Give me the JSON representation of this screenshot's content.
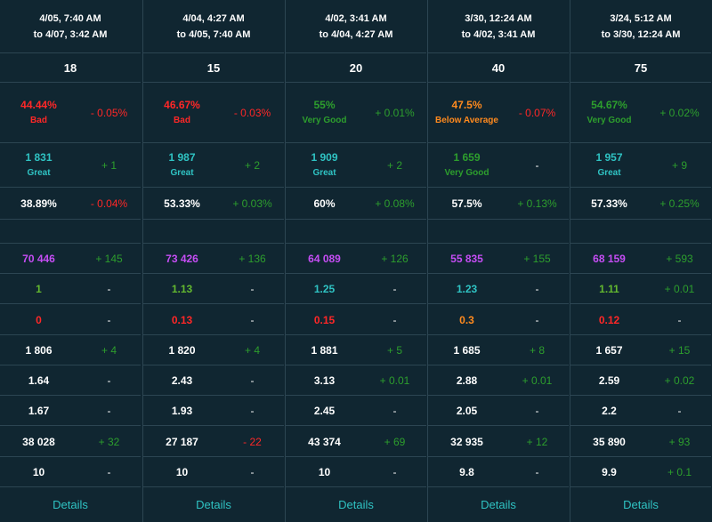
{
  "colors": {
    "background": "#102631",
    "border": "#2c4552",
    "green": "#2d9e2d",
    "light_green": "#63b82f",
    "cyan": "#2fc3c3",
    "red": "#ff2727",
    "orange": "#ff8a1e",
    "purple": "#c54df4"
  },
  "columns": [
    {
      "period_line1": "4/05, 7:40 AM",
      "period_line2": "to 4/07, 3:42 AM",
      "count": "18",
      "rating_value": "44.44%",
      "rating_label": "Bad",
      "rating_color": "red",
      "rating_delta": "- 0.05%",
      "rating_delta_color": "red",
      "ratio_value": "1 831",
      "ratio_label": "Great",
      "ratio_color": "cyan",
      "ratio_delta": "+ 1",
      "ratio_delta_color": "green",
      "pct_value": "38.89%",
      "pct_delta": "- 0.04%",
      "pct_delta_color": "red",
      "stats": [
        {
          "value": "70 446",
          "value_color": "purple",
          "delta": "+ 145",
          "delta_color": "green"
        },
        {
          "value": "1",
          "value_color": "lgreen",
          "delta": "-",
          "delta_color": "dash"
        },
        {
          "value": "0",
          "value_color": "red",
          "delta": "-",
          "delta_color": "dash"
        },
        {
          "value": "1 806",
          "value_color": "white",
          "delta": "+ 4",
          "delta_color": "green"
        },
        {
          "value": "1.64",
          "value_color": "white",
          "delta": "-",
          "delta_color": "dash"
        },
        {
          "value": "1.67",
          "value_color": "white",
          "delta": "-",
          "delta_color": "dash"
        },
        {
          "value": "38 028",
          "value_color": "white",
          "delta": "+ 32",
          "delta_color": "green"
        },
        {
          "value": "10",
          "value_color": "white",
          "delta": "-",
          "delta_color": "dash"
        }
      ],
      "details_label": "Details"
    },
    {
      "period_line1": "4/04, 4:27 AM",
      "period_line2": "to 4/05, 7:40 AM",
      "count": "15",
      "rating_value": "46.67%",
      "rating_label": "Bad",
      "rating_color": "red",
      "rating_delta": "- 0.03%",
      "rating_delta_color": "red",
      "ratio_value": "1 987",
      "ratio_label": "Great",
      "ratio_color": "cyan",
      "ratio_delta": "+ 2",
      "ratio_delta_color": "green",
      "pct_value": "53.33%",
      "pct_delta": "+ 0.03%",
      "pct_delta_color": "green",
      "stats": [
        {
          "value": "73 426",
          "value_color": "purple",
          "delta": "+ 136",
          "delta_color": "green"
        },
        {
          "value": "1.13",
          "value_color": "lgreen",
          "delta": "-",
          "delta_color": "dash"
        },
        {
          "value": "0.13",
          "value_color": "red",
          "delta": "-",
          "delta_color": "dash"
        },
        {
          "value": "1 820",
          "value_color": "white",
          "delta": "+ 4",
          "delta_color": "green"
        },
        {
          "value": "2.43",
          "value_color": "white",
          "delta": "-",
          "delta_color": "dash"
        },
        {
          "value": "1.93",
          "value_color": "white",
          "delta": "-",
          "delta_color": "dash"
        },
        {
          "value": "27 187",
          "value_color": "white",
          "delta": "- 22",
          "delta_color": "red"
        },
        {
          "value": "10",
          "value_color": "white",
          "delta": "-",
          "delta_color": "dash"
        }
      ],
      "details_label": "Details"
    },
    {
      "period_line1": "4/02, 3:41 AM",
      "period_line2": "to 4/04, 4:27 AM",
      "count": "20",
      "rating_value": "55%",
      "rating_label": "Very Good",
      "rating_color": "green",
      "rating_delta": "+ 0.01%",
      "rating_delta_color": "green",
      "ratio_value": "1 909",
      "ratio_label": "Great",
      "ratio_color": "cyan",
      "ratio_delta": "+ 2",
      "ratio_delta_color": "green",
      "pct_value": "60%",
      "pct_delta": "+ 0.08%",
      "pct_delta_color": "green",
      "stats": [
        {
          "value": "64 089",
          "value_color": "purple",
          "delta": "+ 126",
          "delta_color": "green"
        },
        {
          "value": "1.25",
          "value_color": "cyan",
          "delta": "-",
          "delta_color": "dash"
        },
        {
          "value": "0.15",
          "value_color": "red",
          "delta": "-",
          "delta_color": "dash"
        },
        {
          "value": "1 881",
          "value_color": "white",
          "delta": "+ 5",
          "delta_color": "green"
        },
        {
          "value": "3.13",
          "value_color": "white",
          "delta": "+ 0.01",
          "delta_color": "green"
        },
        {
          "value": "2.45",
          "value_color": "white",
          "delta": "-",
          "delta_color": "dash"
        },
        {
          "value": "43 374",
          "value_color": "white",
          "delta": "+ 69",
          "delta_color": "green"
        },
        {
          "value": "10",
          "value_color": "white",
          "delta": "-",
          "delta_color": "dash"
        }
      ],
      "details_label": "Details"
    },
    {
      "period_line1": "3/30, 12:24 AM",
      "period_line2": "to 4/02, 3:41 AM",
      "count": "40",
      "rating_value": "47.5%",
      "rating_label": "Below Average",
      "rating_color": "orange",
      "rating_delta": "- 0.07%",
      "rating_delta_color": "red",
      "ratio_value": "1 659",
      "ratio_label": "Very Good",
      "ratio_color": "green",
      "ratio_delta": "-",
      "ratio_delta_color": "dash",
      "pct_value": "57.5%",
      "pct_delta": "+ 0.13%",
      "pct_delta_color": "green",
      "stats": [
        {
          "value": "55 835",
          "value_color": "purple",
          "delta": "+ 155",
          "delta_color": "green"
        },
        {
          "value": "1.23",
          "value_color": "cyan",
          "delta": "-",
          "delta_color": "dash"
        },
        {
          "value": "0.3",
          "value_color": "orange",
          "delta": "-",
          "delta_color": "dash"
        },
        {
          "value": "1 685",
          "value_color": "white",
          "delta": "+ 8",
          "delta_color": "green"
        },
        {
          "value": "2.88",
          "value_color": "white",
          "delta": "+ 0.01",
          "delta_color": "green"
        },
        {
          "value": "2.05",
          "value_color": "white",
          "delta": "-",
          "delta_color": "dash"
        },
        {
          "value": "32 935",
          "value_color": "white",
          "delta": "+ 12",
          "delta_color": "green"
        },
        {
          "value": "9.8",
          "value_color": "white",
          "delta": "-",
          "delta_color": "dash"
        }
      ],
      "details_label": "Details"
    },
    {
      "period_line1": "3/24, 5:12 AM",
      "period_line2": "to 3/30, 12:24 AM",
      "count": "75",
      "rating_value": "54.67%",
      "rating_label": "Very Good",
      "rating_color": "green",
      "rating_delta": "+ 0.02%",
      "rating_delta_color": "green",
      "ratio_value": "1 957",
      "ratio_label": "Great",
      "ratio_color": "cyan",
      "ratio_delta": "+ 9",
      "ratio_delta_color": "green",
      "pct_value": "57.33%",
      "pct_delta": "+ 0.25%",
      "pct_delta_color": "green",
      "stats": [
        {
          "value": "68 159",
          "value_color": "purple",
          "delta": "+ 593",
          "delta_color": "green"
        },
        {
          "value": "1.11",
          "value_color": "lgreen",
          "delta": "+ 0.01",
          "delta_color": "green"
        },
        {
          "value": "0.12",
          "value_color": "red",
          "delta": "-",
          "delta_color": "dash"
        },
        {
          "value": "1 657",
          "value_color": "white",
          "delta": "+ 15",
          "delta_color": "green"
        },
        {
          "value": "2.59",
          "value_color": "white",
          "delta": "+ 0.02",
          "delta_color": "green"
        },
        {
          "value": "2.2",
          "value_color": "white",
          "delta": "-",
          "delta_color": "dash"
        },
        {
          "value": "35 890",
          "value_color": "white",
          "delta": "+ 93",
          "delta_color": "green"
        },
        {
          "value": "9.9",
          "value_color": "white",
          "delta": "+ 0.1",
          "delta_color": "green"
        }
      ],
      "details_label": "Details"
    }
  ]
}
